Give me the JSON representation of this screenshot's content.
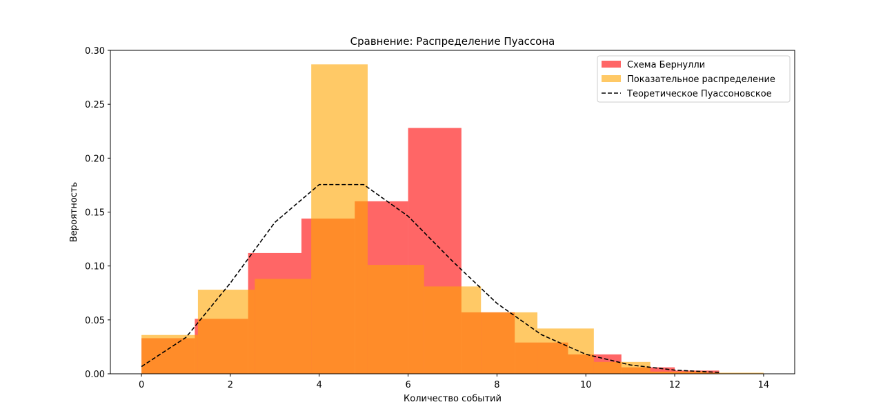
{
  "chart_data": {
    "type": "bar",
    "title": "Сравнение: Распределение Пуассона",
    "xlabel": "Количество событий",
    "ylabel": "Вероятность",
    "xlim": [
      -0.7,
      14.7
    ],
    "ylim": [
      0,
      0.3
    ],
    "x_ticks": [
      "0",
      "2",
      "4",
      "6",
      "8",
      "10",
      "12",
      "14"
    ],
    "y_ticks": [
      "0.00",
      "0.05",
      "0.10",
      "0.15",
      "0.20",
      "0.25",
      "0.30"
    ],
    "legend_position": "top-right",
    "series": [
      {
        "name": "Схема Бернулли",
        "color": "#ff0000",
        "alpha": 0.6,
        "bins": [
          {
            "x0": 0.0,
            "x1": 1.2,
            "y": 0.033
          },
          {
            "x0": 1.2,
            "x1": 2.4,
            "y": 0.051
          },
          {
            "x0": 2.4,
            "x1": 3.6,
            "y": 0.112
          },
          {
            "x0": 3.6,
            "x1": 4.8,
            "y": 0.144
          },
          {
            "x0": 4.8,
            "x1": 6.0,
            "y": 0.16
          },
          {
            "x0": 6.0,
            "x1": 7.2,
            "y": 0.228
          },
          {
            "x0": 7.2,
            "x1": 8.4,
            "y": 0.057
          },
          {
            "x0": 8.4,
            "x1": 9.6,
            "y": 0.029
          },
          {
            "x0": 9.6,
            "x1": 10.8,
            "y": 0.018
          },
          {
            "x0": 10.8,
            "x1": 12.0,
            "y": 0.006
          },
          {
            "x0": 12.0,
            "x1": 13.0,
            "y": 0.003
          }
        ]
      },
      {
        "name": "Показательное распределение",
        "color": "#ffa500",
        "alpha": 0.6,
        "bins": [
          {
            "x0": 0.0,
            "x1": 1.27,
            "y": 0.036
          },
          {
            "x0": 1.27,
            "x1": 2.55,
            "y": 0.078
          },
          {
            "x0": 2.55,
            "x1": 3.82,
            "y": 0.088
          },
          {
            "x0": 3.82,
            "x1": 5.09,
            "y": 0.287
          },
          {
            "x0": 5.09,
            "x1": 6.36,
            "y": 0.101
          },
          {
            "x0": 6.36,
            "x1": 7.64,
            "y": 0.081
          },
          {
            "x0": 7.64,
            "x1": 8.91,
            "y": 0.057
          },
          {
            "x0": 8.91,
            "x1": 10.18,
            "y": 0.042
          },
          {
            "x0": 10.18,
            "x1": 11.45,
            "y": 0.011
          },
          {
            "x0": 11.45,
            "x1": 12.73,
            "y": 0.002
          },
          {
            "x0": 12.73,
            "x1": 14.0,
            "y": 0.001
          }
        ]
      },
      {
        "name": "Теоретическое Пуассоновское",
        "type": "line",
        "color": "#000000",
        "dash": "dashed",
        "x": [
          0,
          1,
          2,
          3,
          4,
          5,
          6,
          7,
          8,
          9,
          10,
          11,
          12,
          13
        ],
        "y": [
          0.0067,
          0.0337,
          0.0842,
          0.1404,
          0.1755,
          0.1755,
          0.1462,
          0.1044,
          0.0653,
          0.0363,
          0.0181,
          0.0082,
          0.0034,
          0.0013
        ]
      }
    ]
  }
}
